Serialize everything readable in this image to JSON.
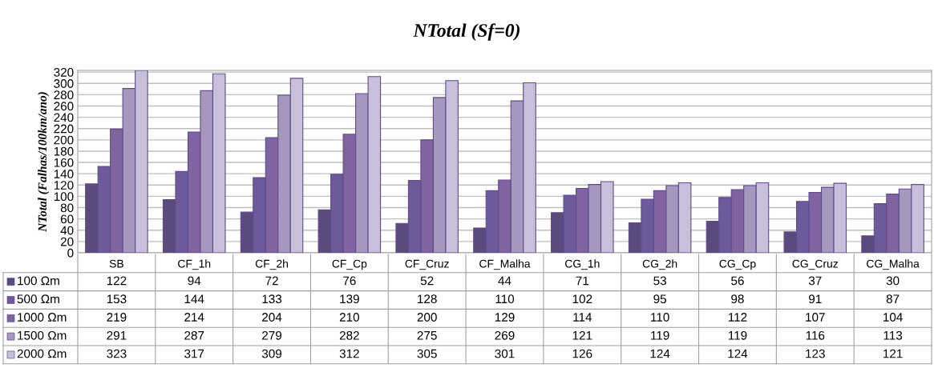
{
  "chart_data": {
    "type": "bar",
    "title": "NTotal (Sf=0)",
    "ylabel": "NTotal (Falhas/100km/ano)",
    "categories": [
      "SB",
      "CF_1h",
      "CF_2h",
      "CF_Cp",
      "CF_Cruz",
      "CF_Malha",
      "CG_1h",
      "CG_2h",
      "CG_Cp",
      "CG_Cruz",
      "CG_Malha"
    ],
    "series": [
      {
        "name": "100 Ωm",
        "color": "#5b4a7e",
        "values": [
          122,
          94,
          72,
          76,
          52,
          44,
          71,
          53,
          56,
          37,
          30
        ]
      },
      {
        "name": "500 Ωm",
        "color": "#6e5a9a",
        "values": [
          153,
          144,
          133,
          139,
          128,
          110,
          102,
          95,
          98,
          91,
          87
        ]
      },
      {
        "name": "1000 Ωm",
        "color": "#8064a2",
        "values": [
          219,
          214,
          204,
          210,
          200,
          129,
          114,
          110,
          112,
          107,
          104
        ]
      },
      {
        "name": "1500 Ωm",
        "color": "#a597be",
        "values": [
          291,
          287,
          279,
          282,
          275,
          269,
          121,
          119,
          119,
          116,
          113
        ]
      },
      {
        "name": "2000 Ωm",
        "color": "#c8c0da",
        "values": [
          323,
          317,
          309,
          312,
          305,
          301,
          126,
          124,
          124,
          123,
          121
        ]
      }
    ],
    "ylim": [
      0,
      323
    ],
    "yticks": [
      0,
      20,
      40,
      60,
      80,
      100,
      120,
      140,
      160,
      180,
      200,
      220,
      240,
      260,
      280,
      300,
      320
    ],
    "grid": "y",
    "legend": "bottom",
    "data_labels": true
  }
}
